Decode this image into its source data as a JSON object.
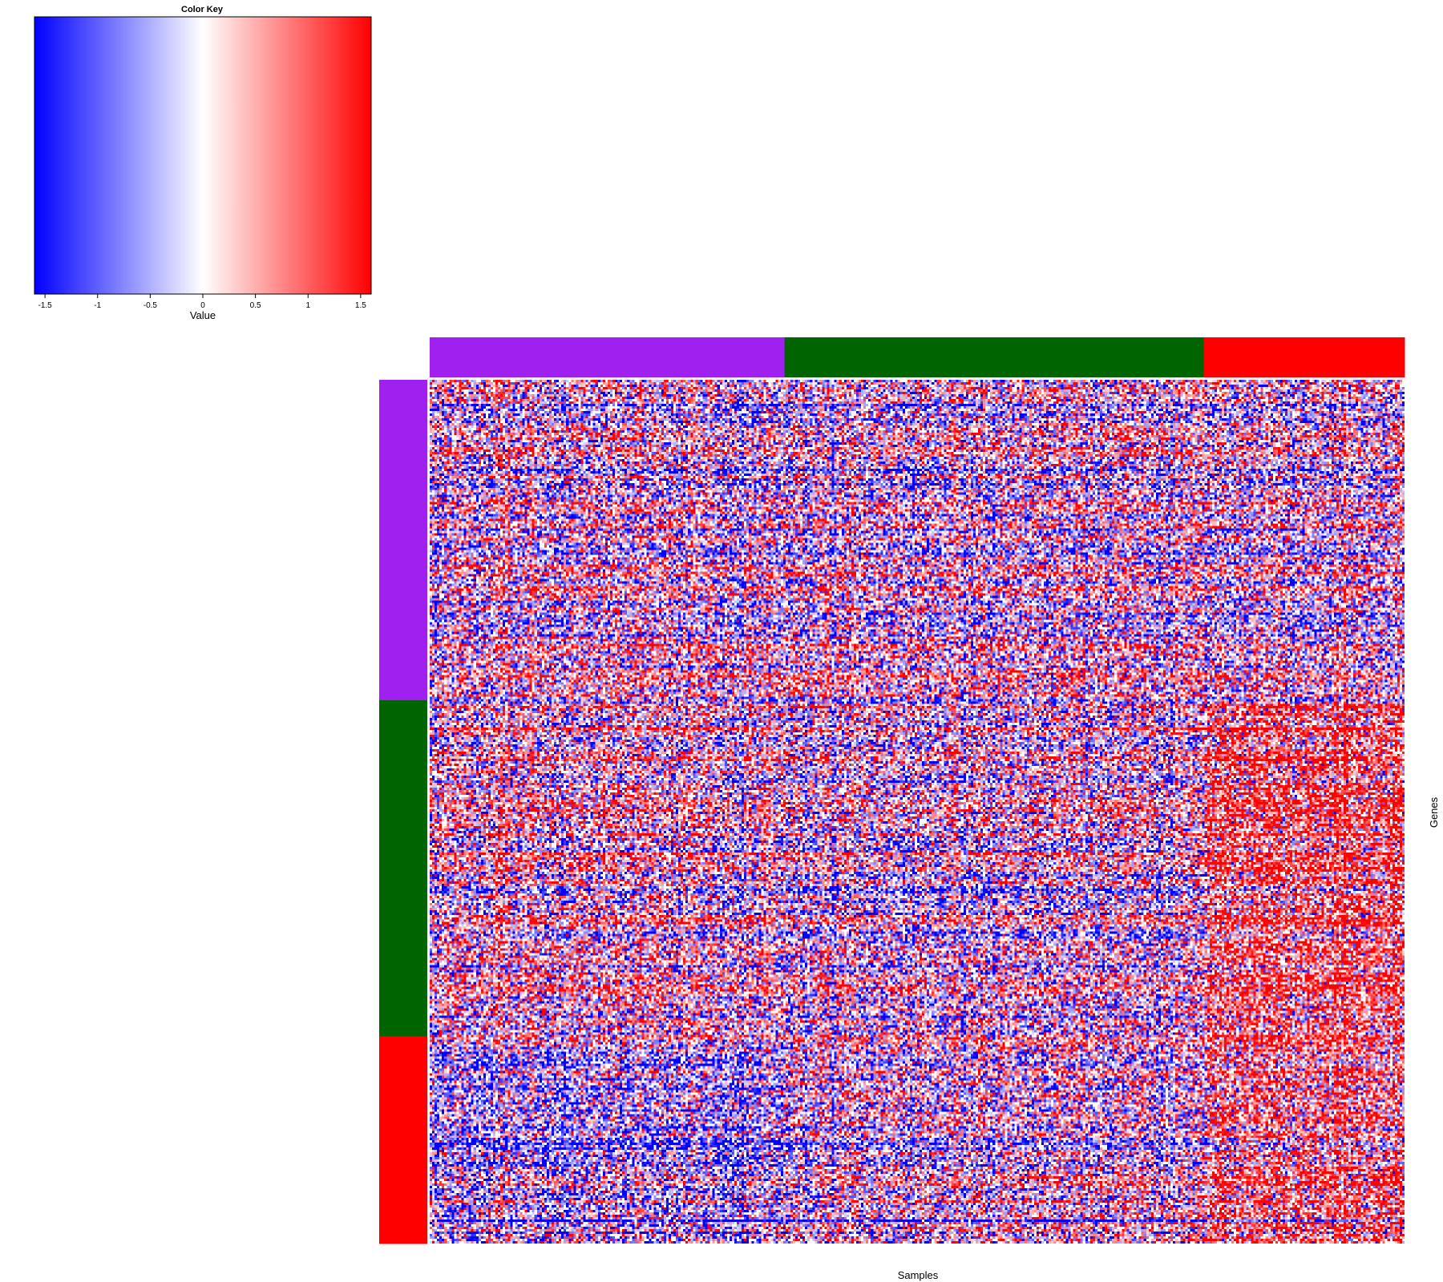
{
  "chart_data": {
    "type": "heatmap",
    "color_key": {
      "title": "Color Key",
      "xlabel": "Value",
      "range": [
        -1.6,
        1.6
      ],
      "ticks": [
        -1.5,
        -1,
        -0.5,
        0,
        0.5,
        1,
        1.5
      ],
      "tick_labels": [
        "-1.5",
        "-1",
        "-0.5",
        "0",
        "0.5",
        "1",
        "1.5"
      ],
      "low_color": "#0000ff",
      "mid_color": "#ffffff",
      "high_color": "#ff0000"
    },
    "xlabel": "Samples",
    "ylabel": "Genes",
    "column_groups": [
      {
        "color": "#a020f0",
        "fraction": 0.364
      },
      {
        "color": "#006400",
        "fraction": 0.43
      },
      {
        "color": "#ff0000",
        "fraction": 0.206
      }
    ],
    "row_groups": [
      {
        "color": "#a020f0",
        "fraction": 0.371
      },
      {
        "color": "#006400",
        "fraction": 0.389
      },
      {
        "color": "#ff0000",
        "fraction": 0.24
      }
    ],
    "n_samples": 400,
    "n_genes": 360,
    "block_pattern": [
      [
        0.0,
        0.0,
        0.0
      ],
      [
        0.1,
        -0.1,
        0.9
      ],
      [
        -0.4,
        0.0,
        0.8
      ]
    ]
  }
}
